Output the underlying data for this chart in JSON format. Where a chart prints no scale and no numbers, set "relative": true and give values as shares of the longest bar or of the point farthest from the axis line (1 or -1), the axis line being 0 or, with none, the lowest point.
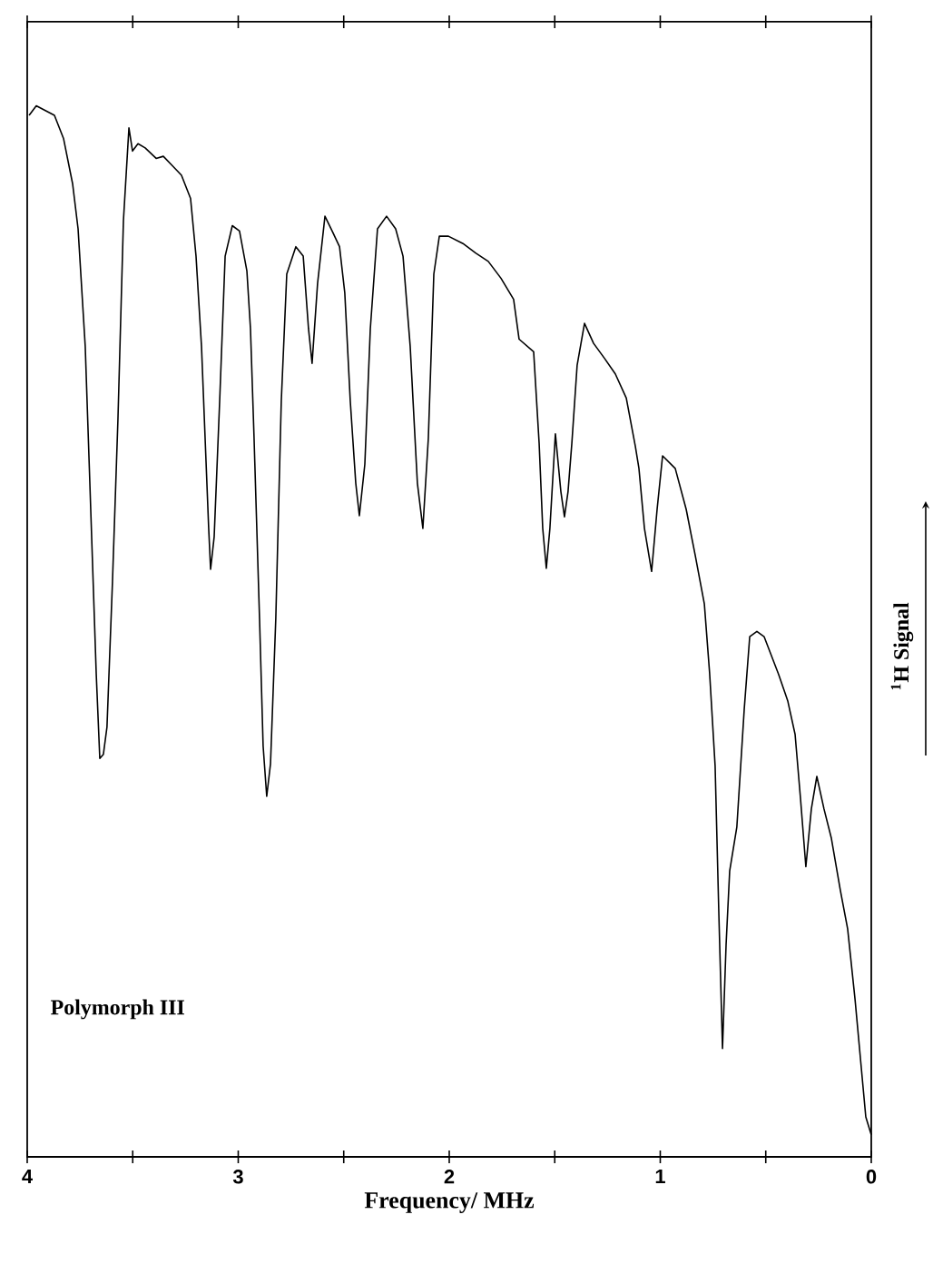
{
  "chart_data": {
    "type": "line",
    "relative": true,
    "color": "#000000",
    "xlabel": "Frequency/ MHz",
    "ylabel": "$^{1}$H  Signal",
    "annotations": [
      "Polymorph III"
    ],
    "xlim": [
      4,
      0
    ],
    "xticks": [
      4,
      {
        "value": 3.5,
        "label": null
      },
      3,
      {
        "value": 2.5,
        "label": null
      },
      2,
      {
        "value": 1.5,
        "label": null
      },
      1,
      {
        "value": 0.5,
        "label": null
      },
      0
    ],
    "x": [
      3.991,
      3.957,
      3.871,
      3.828,
      3.785,
      3.759,
      3.725,
      3.699,
      3.673,
      3.656,
      3.639,
      3.622,
      3.596,
      3.57,
      3.544,
      3.518,
      3.501,
      3.475,
      3.441,
      3.389,
      3.355,
      3.312,
      3.269,
      3.226,
      3.2,
      3.174,
      3.157,
      3.14,
      3.131,
      3.114,
      3.088,
      3.062,
      3.028,
      2.994,
      2.959,
      2.942,
      2.925,
      2.899,
      2.882,
      2.865,
      2.847,
      2.822,
      2.796,
      2.77,
      2.727,
      2.692,
      2.667,
      2.65,
      2.624,
      2.589,
      2.555,
      2.52,
      2.495,
      2.469,
      2.443,
      2.426,
      2.4,
      2.374,
      2.34,
      2.297,
      2.254,
      2.219,
      2.185,
      2.151,
      2.125,
      2.099,
      2.073,
      2.047,
      2.004,
      1.935,
      1.875,
      1.815,
      1.755,
      1.695,
      1.669,
      1.6,
      1.574,
      1.557,
      1.54,
      1.523,
      1.497,
      1.471,
      1.454,
      1.437,
      1.419,
      1.394,
      1.359,
      1.316,
      1.265,
      1.213,
      1.161,
      1.118,
      1.101,
      1.075,
      1.041,
      1.015,
      0.989,
      0.929,
      0.877,
      0.834,
      0.791,
      0.766,
      0.74,
      0.723,
      0.705,
      0.688,
      0.671,
      0.637,
      0.602,
      0.576,
      0.542,
      0.508,
      0.439,
      0.396,
      0.361,
      0.335,
      0.31,
      0.284,
      0.258,
      0.224,
      0.189,
      0.146,
      0.112,
      0.077,
      0.052,
      0.026,
      0.0
    ],
    "values": [
      0.991,
      1.0,
      0.991,
      0.969,
      0.926,
      0.883,
      0.771,
      0.616,
      0.46,
      0.379,
      0.383,
      0.409,
      0.547,
      0.702,
      0.891,
      0.979,
      0.957,
      0.964,
      0.96,
      0.95,
      0.952,
      0.943,
      0.934,
      0.912,
      0.857,
      0.771,
      0.684,
      0.598,
      0.559,
      0.59,
      0.719,
      0.857,
      0.886,
      0.881,
      0.843,
      0.788,
      0.684,
      0.512,
      0.391,
      0.343,
      0.374,
      0.512,
      0.719,
      0.84,
      0.866,
      0.857,
      0.788,
      0.755,
      0.831,
      0.895,
      0.881,
      0.866,
      0.822,
      0.719,
      0.641,
      0.61,
      0.659,
      0.788,
      0.883,
      0.895,
      0.883,
      0.857,
      0.771,
      0.641,
      0.598,
      0.684,
      0.84,
      0.876,
      0.876,
      0.869,
      0.86,
      0.852,
      0.836,
      0.816,
      0.778,
      0.766,
      0.679,
      0.598,
      0.56,
      0.598,
      0.688,
      0.633,
      0.609,
      0.633,
      0.679,
      0.753,
      0.793,
      0.774,
      0.76,
      0.745,
      0.722,
      0.676,
      0.655,
      0.598,
      0.557,
      0.616,
      0.667,
      0.655,
      0.616,
      0.572,
      0.526,
      0.46,
      0.372,
      0.236,
      0.103,
      0.202,
      0.272,
      0.314,
      0.426,
      0.495,
      0.5,
      0.495,
      0.459,
      0.434,
      0.402,
      0.34,
      0.276,
      0.331,
      0.362,
      0.331,
      0.303,
      0.253,
      0.217,
      0.15,
      0.095,
      0.038,
      0.021
    ]
  }
}
